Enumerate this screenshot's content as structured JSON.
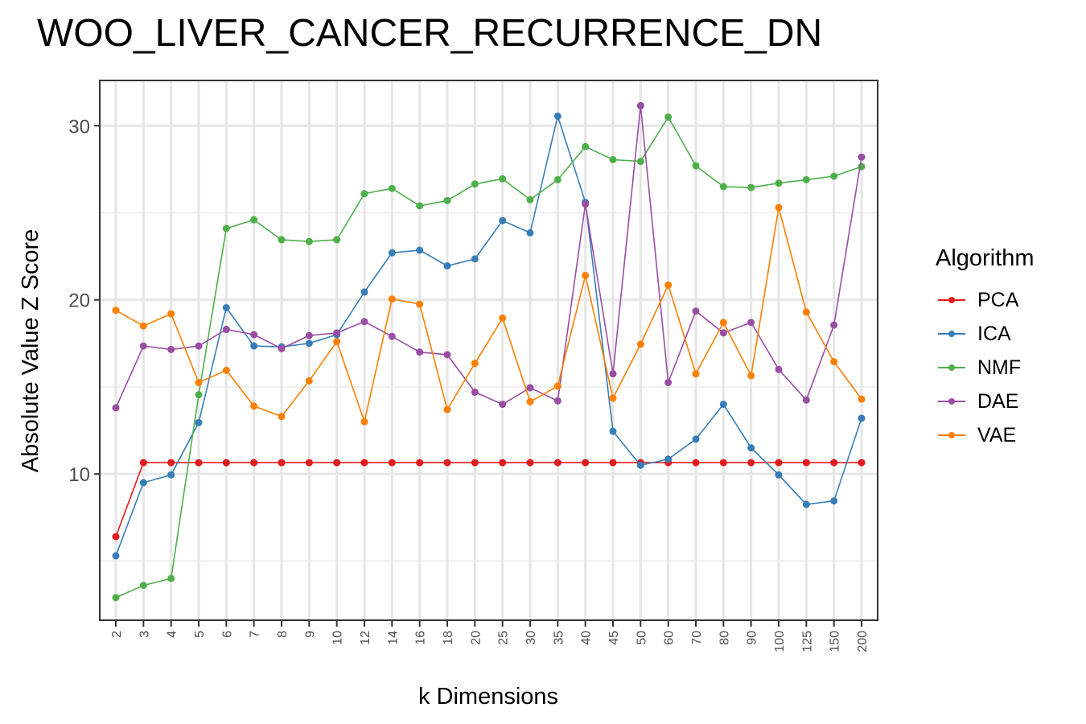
{
  "chart_data": {
    "type": "line",
    "title": "WOO_LIVER_CANCER_RECURRENCE_DN",
    "xlabel": "k Dimensions",
    "ylabel": "Absolute Value Z Score",
    "categories": [
      "2",
      "3",
      "4",
      "5",
      "6",
      "7",
      "8",
      "9",
      "10",
      "12",
      "14",
      "16",
      "18",
      "20",
      "25",
      "30",
      "35",
      "40",
      "45",
      "50",
      "60",
      "70",
      "80",
      "90",
      "100",
      "125",
      "150",
      "200"
    ],
    "ylim": [
      1.6,
      32.6
    ],
    "yticks": [
      10,
      20,
      30
    ],
    "grid": true,
    "legend_title": "Algorithm",
    "legend_position": "right",
    "series": [
      {
        "name": "PCA",
        "color": "#e41a1c",
        "values": [
          6.4,
          10.65,
          10.65,
          10.65,
          10.65,
          10.65,
          10.65,
          10.65,
          10.65,
          10.65,
          10.65,
          10.65,
          10.65,
          10.65,
          10.65,
          10.65,
          10.65,
          10.65,
          10.65,
          10.65,
          10.65,
          10.65,
          10.65,
          10.65,
          10.65,
          10.65,
          10.65,
          10.65
        ]
      },
      {
        "name": "ICA",
        "color": "#377eb8",
        "values": [
          5.3,
          9.5,
          9.95,
          12.95,
          19.55,
          17.35,
          17.3,
          17.5,
          18.0,
          20.45,
          22.7,
          22.85,
          21.95,
          22.35,
          24.55,
          23.85,
          30.55,
          25.6,
          12.45,
          10.5,
          10.85,
          12.0,
          14.0,
          11.5,
          9.95,
          8.25,
          8.45,
          13.2
        ]
      },
      {
        "name": "NMF",
        "color": "#4daf4a",
        "values": [
          2.9,
          3.6,
          4.0,
          14.55,
          24.1,
          24.6,
          23.45,
          23.35,
          23.45,
          26.1,
          26.4,
          25.4,
          25.7,
          26.65,
          26.95,
          25.75,
          26.9,
          28.8,
          28.05,
          27.95,
          30.5,
          27.7,
          26.5,
          26.45,
          26.7,
          26.9,
          27.1,
          27.65
        ]
      },
      {
        "name": "DAE",
        "color": "#984ea3",
        "values": [
          13.8,
          17.35,
          17.15,
          17.35,
          18.3,
          18.0,
          17.2,
          17.95,
          18.1,
          18.75,
          17.9,
          17.0,
          16.85,
          14.7,
          14.0,
          14.95,
          14.2,
          25.5,
          15.75,
          31.15,
          15.25,
          19.35,
          18.1,
          18.7,
          16.0,
          14.25,
          18.55,
          28.2
        ]
      },
      {
        "name": "VAE",
        "color": "#ff7f00",
        "values": [
          19.4,
          18.5,
          19.2,
          15.25,
          15.95,
          13.9,
          13.3,
          15.35,
          17.6,
          13.0,
          20.05,
          19.75,
          13.7,
          16.35,
          18.95,
          14.15,
          15.05,
          21.4,
          14.35,
          17.45,
          20.85,
          15.75,
          18.7,
          15.65,
          25.3,
          19.3,
          16.45,
          14.3
        ]
      }
    ]
  }
}
